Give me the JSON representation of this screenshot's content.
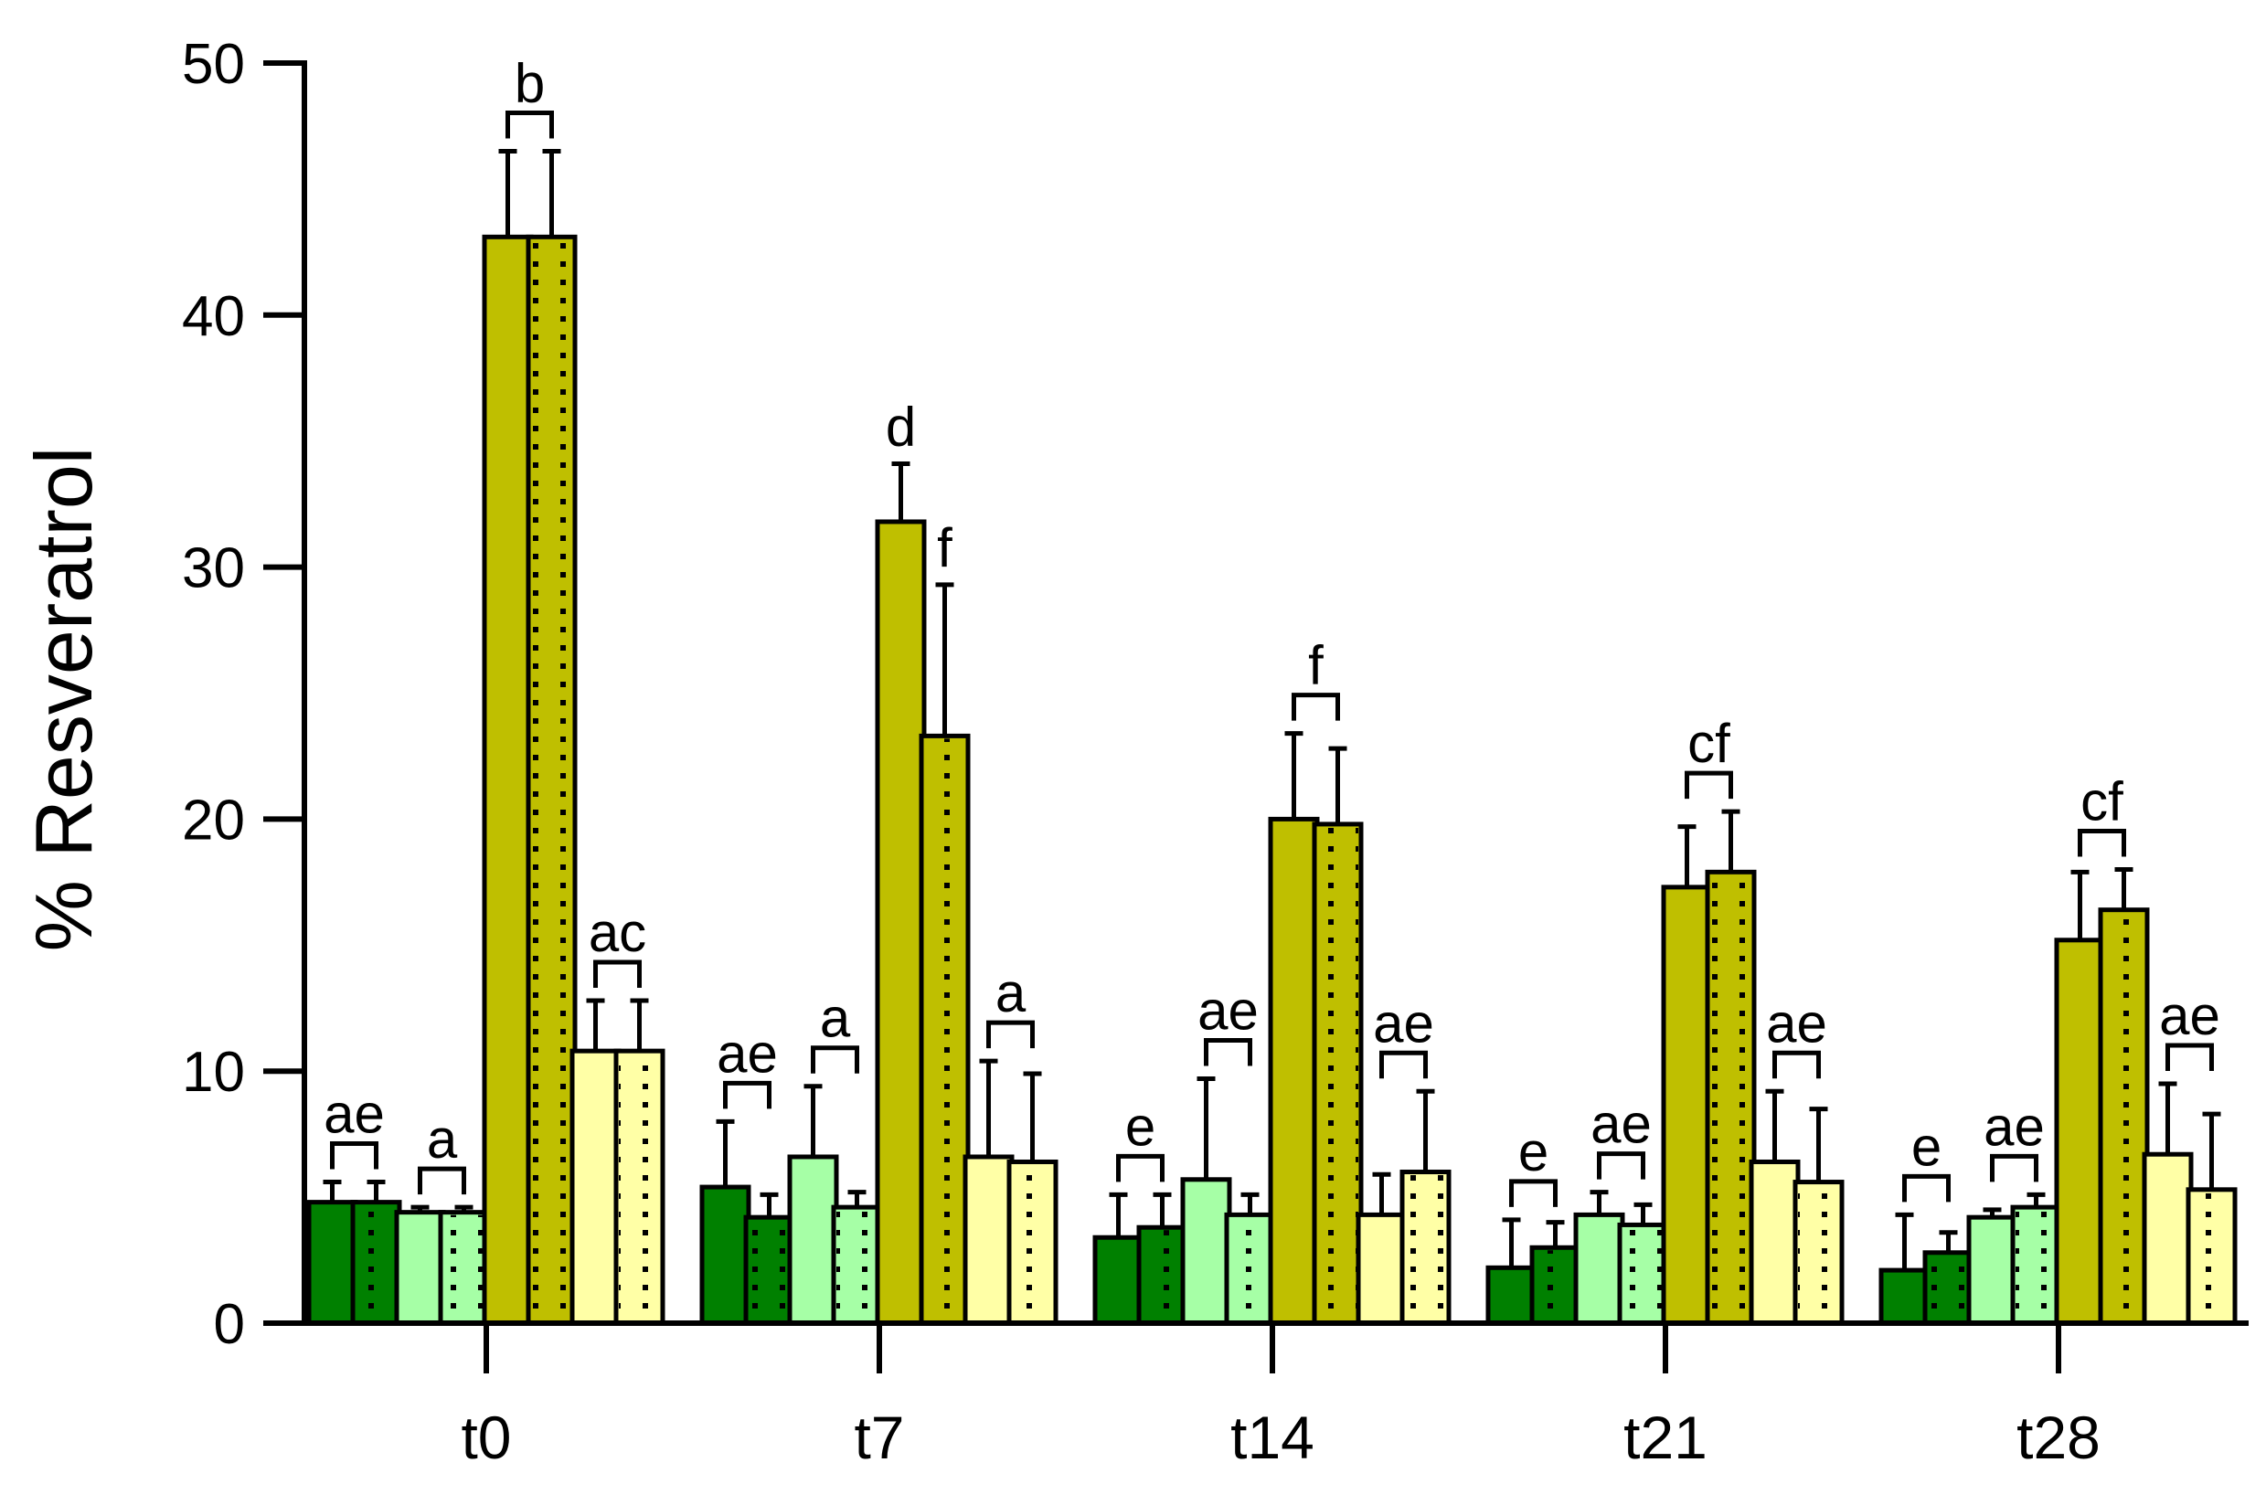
{
  "chart_data": {
    "type": "bar",
    "title": "",
    "xlabel": "",
    "ylabel": "% Resveratrol",
    "ylim": [
      0,
      50
    ],
    "yticks": [
      0,
      10,
      20,
      30,
      40,
      50
    ],
    "categories": [
      "t0",
      "t7",
      "t14",
      "t21",
      "t28"
    ],
    "series": [
      {
        "fill": "#008000",
        "pattern": "solid",
        "values": [
          4.8,
          5.4,
          3.4,
          2.2,
          2.1
        ],
        "errors": [
          0.8,
          2.6,
          1.7,
          1.9,
          2.2
        ]
      },
      {
        "fill": "#008000",
        "pattern": "dotted",
        "values": [
          4.8,
          4.2,
          3.8,
          3.0,
          2.8
        ],
        "errors": [
          0.8,
          0.9,
          1.3,
          1.0,
          0.8
        ]
      },
      {
        "fill": "#a6ffa6",
        "pattern": "solid",
        "values": [
          4.4,
          6.6,
          5.7,
          4.3,
          4.2
        ],
        "errors": [
          0.2,
          2.8,
          4.0,
          0.9,
          0.3
        ]
      },
      {
        "fill": "#a6ffa6",
        "pattern": "dotted",
        "values": [
          4.4,
          4.6,
          4.3,
          3.9,
          4.6
        ],
        "errors": [
          0.2,
          0.6,
          0.8,
          0.8,
          0.5
        ]
      },
      {
        "fill": "#bfbf00",
        "pattern": "solid",
        "values": [
          43.1,
          31.8,
          20.0,
          17.3,
          15.2
        ],
        "errors": [
          3.4,
          2.3,
          3.4,
          2.4,
          2.7
        ]
      },
      {
        "fill": "#bfbf00",
        "pattern": "dotted",
        "values": [
          43.1,
          23.3,
          19.8,
          17.9,
          16.4
        ],
        "errors": [
          3.4,
          6.0,
          3.0,
          2.4,
          1.6
        ]
      },
      {
        "fill": "#ffffa6",
        "pattern": "solid",
        "values": [
          10.8,
          6.6,
          4.3,
          6.4,
          6.7
        ],
        "errors": [
          2.0,
          3.8,
          1.6,
          2.8,
          2.8
        ]
      },
      {
        "fill": "#ffffa6",
        "pattern": "dotted",
        "values": [
          10.8,
          6.4,
          6.0,
          5.6,
          5.3
        ],
        "errors": [
          2.0,
          3.5,
          3.2,
          2.9,
          3.0
        ]
      }
    ],
    "annotations": [
      {
        "category": "t0",
        "pair": 0,
        "text": "ae"
      },
      {
        "category": "t0",
        "pair": 1,
        "text": "a"
      },
      {
        "category": "t0",
        "pair": 2,
        "text": "b"
      },
      {
        "category": "t0",
        "pair": 3,
        "text": "ac"
      },
      {
        "category": "t7",
        "pair": 0,
        "text": "ae"
      },
      {
        "category": "t7",
        "pair": 1,
        "text": "a"
      },
      {
        "category": "t7",
        "bar": 4,
        "text": "d"
      },
      {
        "category": "t7",
        "bar": 5,
        "text": "f"
      },
      {
        "category": "t7",
        "pair": 3,
        "text": "a"
      },
      {
        "category": "t14",
        "pair": 0,
        "text": "e"
      },
      {
        "category": "t14",
        "pair": 1,
        "text": "ae"
      },
      {
        "category": "t14",
        "pair": 2,
        "text": "f"
      },
      {
        "category": "t14",
        "pair": 3,
        "text": "ae"
      },
      {
        "category": "t21",
        "pair": 0,
        "text": "e"
      },
      {
        "category": "t21",
        "pair": 1,
        "text": "ae"
      },
      {
        "category": "t21",
        "pair": 2,
        "text": "cf"
      },
      {
        "category": "t21",
        "pair": 3,
        "text": "ae"
      },
      {
        "category": "t28",
        "pair": 0,
        "text": "e"
      },
      {
        "category": "t28",
        "pair": 1,
        "text": "ae"
      },
      {
        "category": "t28",
        "pair": 2,
        "text": "cf"
      },
      {
        "category": "t28",
        "pair": 3,
        "text": "ae"
      }
    ],
    "grid": false,
    "legend": "none"
  }
}
